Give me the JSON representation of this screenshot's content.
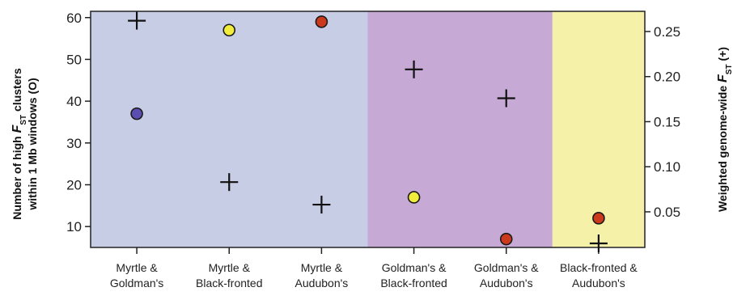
{
  "chart_data": {
    "type": "scatter",
    "categories": [
      [
        "Myrtle &",
        "Goldman's"
      ],
      [
        "Myrtle &",
        "Black-fronted"
      ],
      [
        "Myrtle &",
        "Audubon's"
      ],
      [
        "Goldman's &",
        "Black-fronted"
      ],
      [
        "Goldman's &",
        "Audubon's"
      ],
      [
        "Black-fronted &",
        "Audubon's"
      ]
    ],
    "left_axis": {
      "label_lines": [
        "Number of high F_ST clusters",
        "within 1 Mb windows (O)"
      ],
      "ticks": [
        10,
        20,
        30,
        40,
        50,
        60
      ],
      "ylim": [
        5,
        61.5
      ]
    },
    "right_axis": {
      "label": "Weighted genome-wide F_ST (+)",
      "ticks": [
        "0.05",
        "0.10",
        "0.15",
        "0.20",
        "0.25"
      ],
      "ylim": [
        0.0105,
        0.2724
      ]
    },
    "series": [
      {
        "marker": "circle",
        "axis": "left",
        "values": [
          37,
          57,
          59,
          17,
          7,
          12
        ],
        "colors": [
          "#5a4fb0",
          "#f2ec3c",
          "#cc3a1e",
          "#f2ec3c",
          "#cc3a1e",
          "#cc3a1e"
        ]
      },
      {
        "marker": "plus",
        "axis": "right",
        "values": [
          0.262,
          0.083,
          0.058,
          0.208,
          0.176,
          0.015
        ]
      }
    ],
    "background_bands": [
      {
        "from_index": 0,
        "to_index": 2,
        "color": "#c8cde6"
      },
      {
        "from_index": 3,
        "to_index": 4,
        "color": "#c6a9d4"
      },
      {
        "from_index": 5,
        "to_index": 5,
        "color": "#f5f1a8"
      }
    ]
  }
}
